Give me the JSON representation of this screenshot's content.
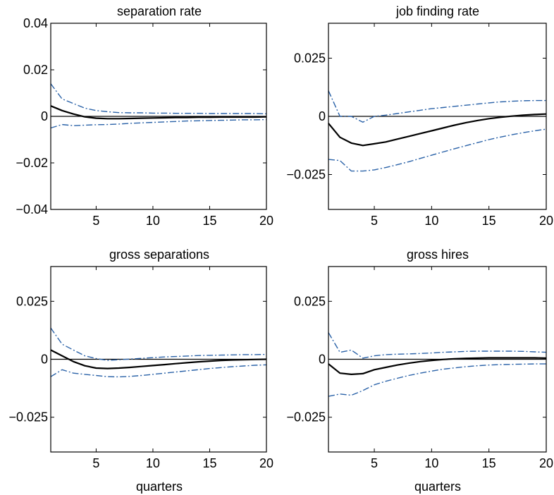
{
  "chart_data": [
    {
      "type": "line",
      "title": "separation rate",
      "xlabel": "",
      "ylabel": "",
      "xlim": [
        1,
        20
      ],
      "ylim": [
        -0.04,
        0.04
      ],
      "xticks": [
        5,
        10,
        15,
        20
      ],
      "yticks": [
        0.04,
        0.02,
        0,
        -0.02,
        -0.04
      ],
      "ytick_labels": [
        "0.04",
        "0.02",
        "0",
        "−0.02",
        "−0.04"
      ],
      "zero_line": true,
      "grid": false,
      "x": [
        1,
        2,
        3,
        4,
        5,
        6,
        7,
        8,
        9,
        10,
        11,
        12,
        13,
        14,
        15,
        16,
        17,
        18,
        19,
        20
      ],
      "series": [
        {
          "role": "estimate",
          "values": [
            0.0045,
            0.0025,
            0.001,
            -0.0002,
            -0.0008,
            -0.001,
            -0.001,
            -0.0009,
            -0.0008,
            -0.0007,
            -0.0006,
            -0.0005,
            -0.0005,
            -0.0004,
            -0.0004,
            -0.0003,
            -0.0003,
            -0.0003,
            -0.0003,
            -0.0002
          ]
        },
        {
          "role": "upper-band",
          "values": [
            0.014,
            0.0075,
            0.0055,
            0.0035,
            0.0025,
            0.002,
            0.0016,
            0.0015,
            0.0015,
            0.0014,
            0.0014,
            0.0013,
            0.0013,
            0.0013,
            0.0012,
            0.0012,
            0.0012,
            0.0012,
            0.0012,
            0.0011
          ]
        },
        {
          "role": "lower-band",
          "values": [
            -0.005,
            -0.0035,
            -0.004,
            -0.0038,
            -0.0036,
            -0.0035,
            -0.0033,
            -0.003,
            -0.0028,
            -0.0026,
            -0.0024,
            -0.0022,
            -0.002,
            -0.0019,
            -0.0018,
            -0.0017,
            -0.0016,
            -0.0015,
            -0.0015,
            -0.0014
          ]
        }
      ]
    },
    {
      "type": "line",
      "title": "job finding rate",
      "xlabel": "",
      "ylabel": "",
      "xlim": [
        1,
        20
      ],
      "ylim": [
        -0.04,
        0.04
      ],
      "xticks": [
        5,
        10,
        15,
        20
      ],
      "yticks": [
        0.025,
        0,
        -0.025
      ],
      "ytick_labels": [
        "0.025",
        "0",
        "−0.025"
      ],
      "zero_line": true,
      "grid": false,
      "x": [
        1,
        2,
        3,
        4,
        5,
        6,
        7,
        8,
        9,
        10,
        11,
        12,
        13,
        14,
        15,
        16,
        17,
        18,
        19,
        20
      ],
      "series": [
        {
          "role": "estimate",
          "values": [
            -0.003,
            -0.009,
            -0.0115,
            -0.0125,
            -0.0118,
            -0.011,
            -0.0098,
            -0.0086,
            -0.0074,
            -0.0062,
            -0.005,
            -0.0038,
            -0.0027,
            -0.0018,
            -0.001,
            -0.0004,
            0.0001,
            0.0005,
            0.0008,
            0.001
          ]
        },
        {
          "role": "upper-band",
          "values": [
            0.011,
            0.0,
            0.0,
            -0.0025,
            0.0,
            0.0005,
            0.0012,
            0.0019,
            0.0026,
            0.0033,
            0.0038,
            0.0043,
            0.0048,
            0.0053,
            0.0058,
            0.0062,
            0.0065,
            0.0067,
            0.0068,
            0.0068
          ]
        },
        {
          "role": "lower-band",
          "values": [
            -0.0185,
            -0.019,
            -0.0235,
            -0.0235,
            -0.023,
            -0.022,
            -0.0208,
            -0.0195,
            -0.0181,
            -0.0167,
            -0.0153,
            -0.0139,
            -0.0126,
            -0.0113,
            -0.01,
            -0.0089,
            -0.0079,
            -0.007,
            -0.0062,
            -0.0055
          ]
        }
      ]
    },
    {
      "type": "line",
      "title": "gross separations",
      "xlabel": "quarters",
      "ylabel": "",
      "xlim": [
        1,
        20
      ],
      "ylim": [
        -0.04,
        0.04
      ],
      "xticks": [
        5,
        10,
        15,
        20
      ],
      "yticks": [
        0.025,
        0,
        -0.025
      ],
      "ytick_labels": [
        "0.025",
        "0",
        "−0.025"
      ],
      "zero_line": true,
      "grid": false,
      "x": [
        1,
        2,
        3,
        4,
        5,
        6,
        7,
        8,
        9,
        10,
        11,
        12,
        13,
        14,
        15,
        16,
        17,
        18,
        19,
        20
      ],
      "series": [
        {
          "role": "estimate",
          "values": [
            0.004,
            0.0015,
            -0.001,
            -0.0028,
            -0.0038,
            -0.004,
            -0.0038,
            -0.0035,
            -0.0031,
            -0.0027,
            -0.0023,
            -0.0019,
            -0.0015,
            -0.0011,
            -0.0008,
            -0.0005,
            -0.0003,
            -0.0002,
            -0.0001,
            0.0
          ]
        },
        {
          "role": "upper-band",
          "values": [
            0.0135,
            0.0065,
            0.004,
            0.0015,
            0.0003,
            -0.0005,
            -0.0002,
            0.0001,
            0.0004,
            0.0007,
            0.001,
            0.0012,
            0.0014,
            0.0016,
            0.0017,
            0.0018,
            0.0019,
            0.002,
            0.002,
            0.0021
          ]
        },
        {
          "role": "lower-band",
          "values": [
            -0.0075,
            -0.0045,
            -0.006,
            -0.0065,
            -0.007,
            -0.0075,
            -0.0076,
            -0.0074,
            -0.007,
            -0.0065,
            -0.006,
            -0.0055,
            -0.005,
            -0.0045,
            -0.004,
            -0.0036,
            -0.0032,
            -0.0029,
            -0.0026,
            -0.0024
          ]
        }
      ]
    },
    {
      "type": "line",
      "title": "gross hires",
      "xlabel": "quarters",
      "ylabel": "",
      "xlim": [
        1,
        20
      ],
      "ylim": [
        -0.04,
        0.04
      ],
      "xticks": [
        5,
        10,
        15,
        20
      ],
      "yticks": [
        0.025,
        0,
        -0.025
      ],
      "ytick_labels": [
        "0.025",
        "0",
        "−0.025"
      ],
      "zero_line": true,
      "grid": false,
      "x": [
        1,
        2,
        3,
        4,
        5,
        6,
        7,
        8,
        9,
        10,
        11,
        12,
        13,
        14,
        15,
        16,
        17,
        18,
        19,
        20
      ],
      "series": [
        {
          "role": "estimate",
          "values": [
            -0.002,
            -0.006,
            -0.0065,
            -0.0062,
            -0.0045,
            -0.0035,
            -0.0025,
            -0.0017,
            -0.001,
            -0.0005,
            -0.0001,
            0.0002,
            0.0004,
            0.0005,
            0.0006,
            0.0006,
            0.0006,
            0.0006,
            0.0006,
            0.0005
          ]
        },
        {
          "role": "upper-band",
          "values": [
            0.0115,
            0.003,
            0.004,
            0.0005,
            0.0015,
            0.002,
            0.0022,
            0.0023,
            0.0025,
            0.0027,
            0.003,
            0.0032,
            0.0034,
            0.0035,
            0.0035,
            0.0035,
            0.0035,
            0.0034,
            0.0032,
            0.003
          ]
        },
        {
          "role": "lower-band",
          "values": [
            -0.016,
            -0.015,
            -0.0155,
            -0.0135,
            -0.011,
            -0.0095,
            -0.0082,
            -0.007,
            -0.006,
            -0.0051,
            -0.0043,
            -0.0037,
            -0.0032,
            -0.0028,
            -0.0025,
            -0.0023,
            -0.0022,
            -0.0021,
            -0.002,
            -0.002
          ]
        }
      ]
    }
  ],
  "colors": {
    "estimate": "#000000",
    "band": "#2a62a8",
    "axis": "#000000"
  }
}
